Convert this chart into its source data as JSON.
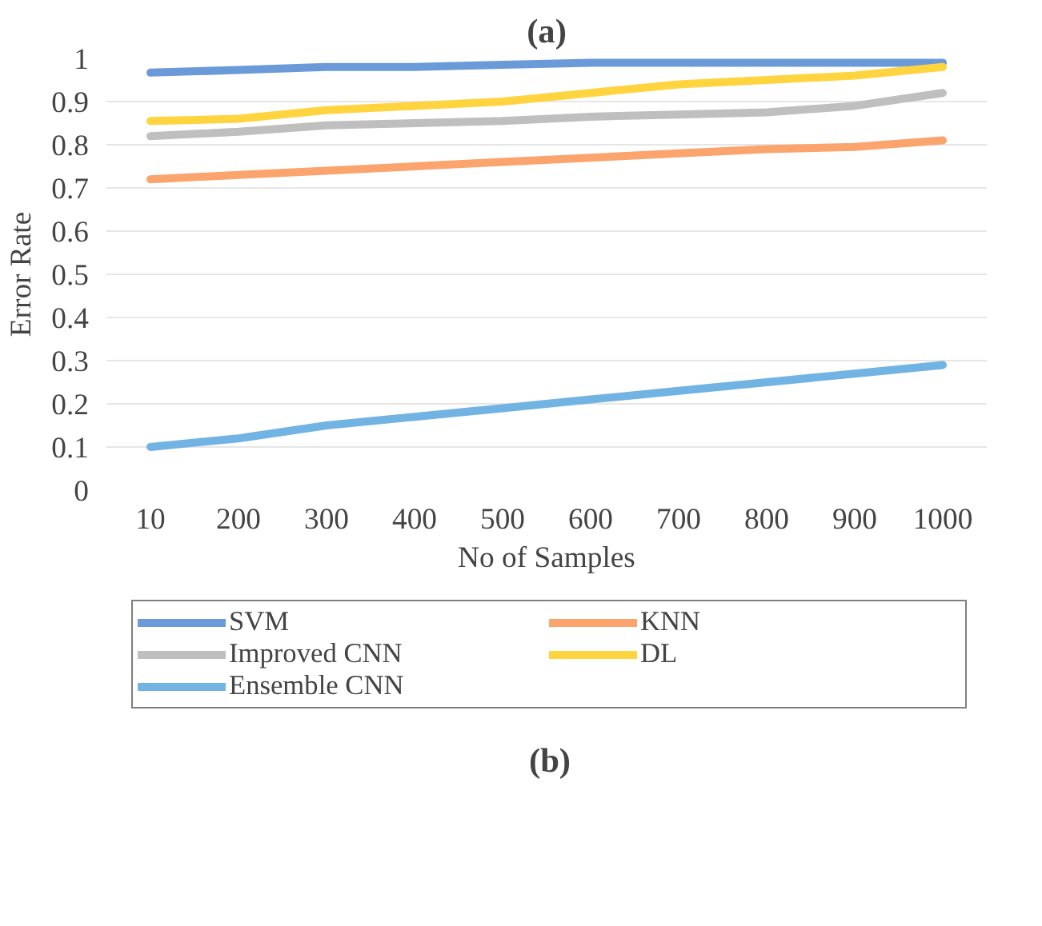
{
  "chart_data": {
    "type": "line",
    "xlabel": "No of Samples",
    "ylabel": "Error Rate",
    "categories": [
      "10",
      "200",
      "300",
      "400",
      "500",
      "600",
      "700",
      "800",
      "900",
      "1000"
    ],
    "ylim": [
      0,
      1
    ],
    "yticks": [
      0,
      0.1,
      0.2,
      0.3,
      0.4,
      0.5,
      0.6,
      0.7,
      0.8,
      0.9,
      1
    ],
    "grid": "y",
    "legend": "bottom",
    "marker": "none",
    "line_style": "solid",
    "annotations": [
      "(a)",
      "(b)"
    ],
    "series": [
      {
        "name": "SVM",
        "color": "#6a9bd8",
        "values": [
          0.967,
          0.973,
          0.98,
          0.98,
          0.985,
          0.99,
          0.99,
          0.99,
          0.99,
          0.99
        ]
      },
      {
        "name": "KNN",
        "color": "#fba46d",
        "values": [
          0.72,
          0.73,
          0.74,
          0.75,
          0.76,
          0.77,
          0.78,
          0.79,
          0.795,
          0.81
        ]
      },
      {
        "name": "Improved CNN",
        "color": "#bfbfbf",
        "values": [
          0.82,
          0.83,
          0.845,
          0.85,
          0.855,
          0.865,
          0.87,
          0.875,
          0.89,
          0.92
        ]
      },
      {
        "name": "DL",
        "color": "#ffd43f",
        "values": [
          0.855,
          0.86,
          0.88,
          0.89,
          0.9,
          0.92,
          0.94,
          0.95,
          0.96,
          0.98
        ]
      },
      {
        "name": "Ensemble CNN",
        "color": "#71b3e2",
        "values": [
          0.1,
          0.12,
          0.15,
          0.17,
          0.19,
          0.21,
          0.23,
          0.25,
          0.27,
          0.29
        ]
      }
    ]
  }
}
